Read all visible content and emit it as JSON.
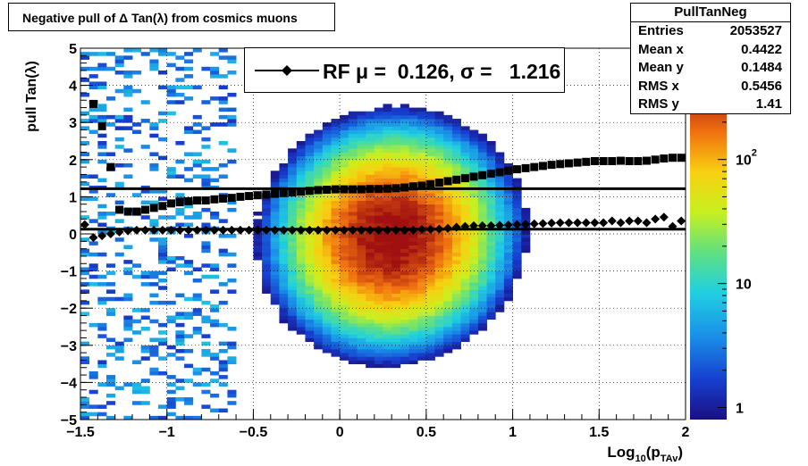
{
  "chart_data": {
    "type": "heatmap",
    "title": "Negative pull of Δ Tan(λ) from cosmics muons",
    "xlabel": "Log",
    "xlabel_sub": "10",
    "xlabel_paren_open": "(p",
    "xlabel_sub2": "TAv",
    "xlabel_paren_close": ")",
    "ylabel": "pull Tan(λ)",
    "xlim": [
      -1.5,
      2.0
    ],
    "ylim": [
      -5,
      5
    ],
    "x_ticks": [
      "−1.5",
      "−1",
      "−0.5",
      "0",
      "0.5",
      "1",
      "1.5",
      "2"
    ],
    "x_tick_values": [
      -1.5,
      -1.0,
      -0.5,
      0.0,
      0.5,
      1.0,
      1.5,
      2.0
    ],
    "y_ticks": [
      "−5",
      "−4",
      "−3",
      "−2",
      "−1",
      "0",
      "1",
      "2",
      "3",
      "4",
      "5"
    ],
    "y_tick_values": [
      -5,
      -4,
      -3,
      -2,
      -1,
      0,
      1,
      2,
      3,
      4,
      5
    ],
    "grid": true,
    "z_scale": "log",
    "z_ticks": [
      "1",
      "10",
      "10"
    ],
    "z_tick_exps": [
      "",
      "",
      "2"
    ],
    "z_tick_values": [
      1,
      10,
      100
    ],
    "stats": {
      "name": "PullTanNeg",
      "rows": [
        {
          "label": "Entries",
          "value": "2053527"
        },
        {
          "label": "Mean x",
          "value": "0.4422"
        },
        {
          "label": "Mean y",
          "value": "0.1484"
        },
        {
          "label": "RMS x",
          "value": "0.5456"
        },
        {
          "label": "RMS y",
          "value": "1.41"
        }
      ]
    },
    "legend_text": "RF μ =  0.126, σ =   1.216",
    "reference_lines": [
      {
        "name": "mean",
        "y": 0.126
      },
      {
        "name": "sigma",
        "y": 1.216
      }
    ],
    "series": [
      {
        "name": "mean",
        "marker": "diamond",
        "x": [
          -1.475,
          -1.425,
          -1.375,
          -1.325,
          -1.275,
          -1.225,
          -1.175,
          -1.125,
          -1.075,
          -1.025,
          -0.975,
          -0.925,
          -0.875,
          -0.825,
          -0.775,
          -0.725,
          -0.675,
          -0.625,
          -0.575,
          -0.525,
          -0.475,
          -0.425,
          -0.375,
          -0.325,
          -0.275,
          -0.225,
          -0.175,
          -0.125,
          -0.075,
          -0.025,
          0.025,
          0.075,
          0.125,
          0.175,
          0.225,
          0.275,
          0.325,
          0.375,
          0.425,
          0.475,
          0.525,
          0.575,
          0.625,
          0.675,
          0.725,
          0.775,
          0.825,
          0.875,
          0.925,
          0.975,
          1.025,
          1.075,
          1.125,
          1.175,
          1.225,
          1.275,
          1.325,
          1.375,
          1.425,
          1.475,
          1.525,
          1.575,
          1.625,
          1.675,
          1.725,
          1.775,
          1.825,
          1.875,
          1.925,
          1.975
        ],
        "y": [
          0.25,
          -0.1,
          -0.05,
          0.0,
          0.05,
          0.08,
          0.1,
          0.1,
          0.1,
          0.1,
          0.1,
          0.1,
          0.1,
          0.1,
          0.1,
          0.1,
          0.1,
          0.1,
          0.1,
          0.1,
          0.1,
          0.1,
          0.1,
          0.1,
          0.1,
          0.1,
          0.1,
          0.1,
          0.1,
          0.1,
          0.1,
          0.1,
          0.1,
          0.1,
          0.1,
          0.1,
          0.1,
          0.1,
          0.1,
          0.12,
          0.12,
          0.13,
          0.15,
          0.18,
          0.2,
          0.22,
          0.22,
          0.22,
          0.23,
          0.24,
          0.25,
          0.26,
          0.27,
          0.28,
          0.29,
          0.3,
          0.3,
          0.3,
          0.3,
          0.3,
          0.3,
          0.35,
          0.3,
          0.35,
          0.35,
          0.3,
          0.4,
          0.45,
          0.2,
          0.35
        ]
      },
      {
        "name": "sigma",
        "marker": "square",
        "x": [
          -1.425,
          -1.375,
          -1.325,
          -1.275,
          -1.225,
          -1.175,
          -1.125,
          -1.075,
          -1.025,
          -0.975,
          -0.925,
          -0.875,
          -0.825,
          -0.775,
          -0.725,
          -0.675,
          -0.625,
          -0.575,
          -0.525,
          -0.475,
          -0.425,
          -0.375,
          -0.325,
          -0.275,
          -0.225,
          -0.175,
          -0.125,
          -0.075,
          -0.025,
          0.025,
          0.075,
          0.125,
          0.175,
          0.225,
          0.275,
          0.325,
          0.375,
          0.425,
          0.475,
          0.525,
          0.575,
          0.625,
          0.675,
          0.725,
          0.775,
          0.825,
          0.875,
          0.925,
          0.975,
          1.025,
          1.075,
          1.125,
          1.175,
          1.225,
          1.275,
          1.325,
          1.375,
          1.425,
          1.475,
          1.525,
          1.575,
          1.625,
          1.675,
          1.725,
          1.775,
          1.825,
          1.875,
          1.925,
          1.975
        ],
        "y": [
          3.5,
          2.9,
          1.8,
          0.65,
          0.6,
          0.6,
          0.65,
          0.7,
          0.75,
          0.82,
          0.85,
          0.88,
          0.9,
          0.9,
          0.93,
          0.95,
          0.97,
          1.0,
          1.02,
          1.04,
          1.06,
          1.08,
          1.1,
          1.12,
          1.14,
          1.16,
          1.18,
          1.19,
          1.2,
          1.2,
          1.2,
          1.2,
          1.21,
          1.21,
          1.22,
          1.23,
          1.25,
          1.28,
          1.3,
          1.34,
          1.38,
          1.42,
          1.46,
          1.5,
          1.54,
          1.58,
          1.62,
          1.66,
          1.7,
          1.74,
          1.77,
          1.8,
          1.83,
          1.86,
          1.88,
          1.9,
          1.92,
          1.94,
          1.96,
          1.96,
          1.96,
          1.97,
          1.96,
          1.96,
          1.97,
          2.0,
          2.03,
          2.05,
          2.05
        ]
      }
    ]
  }
}
